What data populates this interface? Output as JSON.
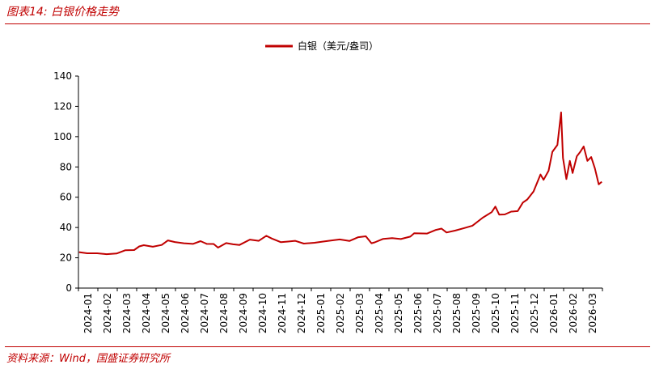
{
  "header": {
    "title": "图表14:  白银价格走势"
  },
  "footer": {
    "source": "资料来源：Wind，国盛证券研究所"
  },
  "colors": {
    "accent": "#c00000",
    "series": "#c00000"
  },
  "chart_data": {
    "type": "line",
    "title": "",
    "xlabel": "",
    "ylabel": "",
    "ylim": [
      0,
      140
    ],
    "yticks": [
      0,
      20,
      40,
      60,
      80,
      100,
      120,
      140
    ],
    "x_tick_labels": [
      "2024-01",
      "2024-02",
      "2024-03",
      "2024-04",
      "2024-05",
      "2024-06",
      "2024-07",
      "2024-08",
      "2024-09",
      "2024-10",
      "2024-11",
      "2024-12",
      "2025-01",
      "2025-02",
      "2025-03",
      "2025-04",
      "2025-05",
      "2025-06",
      "2025-07",
      "2025-08",
      "2025-09",
      "2025-10",
      "2025-11",
      "2025-12",
      "2026-01",
      "2026-02",
      "2026-03"
    ],
    "x_range": [
      "2024-01",
      "2026-04"
    ],
    "legend_position": "top-center",
    "grid": false,
    "series": [
      {
        "name": "白银（美元/盎司）",
        "points": [
          [
            "2024-01-02",
            23.7
          ],
          [
            "2024-01-15",
            23.0
          ],
          [
            "2024-01-31",
            23.0
          ],
          [
            "2024-02-14",
            22.4
          ],
          [
            "2024-02-29",
            22.8
          ],
          [
            "2024-03-14",
            25.0
          ],
          [
            "2024-03-28",
            25.1
          ],
          [
            "2024-04-05",
            27.5
          ],
          [
            "2024-04-12",
            28.3
          ],
          [
            "2024-04-26",
            27.3
          ],
          [
            "2024-05-10",
            28.5
          ],
          [
            "2024-05-20",
            31.5
          ],
          [
            "2024-05-31",
            30.4
          ],
          [
            "2024-06-14",
            29.6
          ],
          [
            "2024-06-28",
            29.2
          ],
          [
            "2024-07-10",
            31.0
          ],
          [
            "2024-07-20",
            29.2
          ],
          [
            "2024-07-31",
            29.1
          ],
          [
            "2024-08-07",
            26.7
          ],
          [
            "2024-08-20",
            29.7
          ],
          [
            "2024-08-31",
            28.9
          ],
          [
            "2024-09-10",
            28.5
          ],
          [
            "2024-09-26",
            32.0
          ],
          [
            "2024-10-10",
            31.2
          ],
          [
            "2024-10-22",
            34.5
          ],
          [
            "2024-10-31",
            32.7
          ],
          [
            "2024-11-14",
            30.3
          ],
          [
            "2024-11-25",
            30.7
          ],
          [
            "2024-12-06",
            31.2
          ],
          [
            "2024-12-20",
            29.4
          ],
          [
            "2025-01-06",
            29.9
          ],
          [
            "2025-01-20",
            30.7
          ],
          [
            "2025-01-31",
            31.3
          ],
          [
            "2025-02-14",
            32.1
          ],
          [
            "2025-02-28",
            31.1
          ],
          [
            "2025-03-14",
            33.6
          ],
          [
            "2025-03-26",
            34.2
          ],
          [
            "2025-04-04",
            29.6
          ],
          [
            "2025-04-09",
            30.2
          ],
          [
            "2025-04-22",
            32.5
          ],
          [
            "2025-05-06",
            33.0
          ],
          [
            "2025-05-20",
            32.4
          ],
          [
            "2025-06-04",
            34.0
          ],
          [
            "2025-06-10",
            36.2
          ],
          [
            "2025-06-30",
            36.0
          ],
          [
            "2025-07-14",
            38.4
          ],
          [
            "2025-07-23",
            39.3
          ],
          [
            "2025-07-31",
            36.7
          ],
          [
            "2025-08-14",
            38.0
          ],
          [
            "2025-08-29",
            39.7
          ],
          [
            "2025-09-10",
            41.2
          ],
          [
            "2025-09-26",
            46.5
          ],
          [
            "2025-10-10",
            50.1
          ],
          [
            "2025-10-16",
            53.8
          ],
          [
            "2025-10-22",
            48.5
          ],
          [
            "2025-10-31",
            48.6
          ],
          [
            "2025-11-10",
            50.5
          ],
          [
            "2025-11-20",
            50.8
          ],
          [
            "2025-11-28",
            56.5
          ],
          [
            "2025-12-05",
            58.5
          ],
          [
            "2025-12-15",
            63.8
          ],
          [
            "2025-12-26",
            75.0
          ],
          [
            "2025-12-31",
            71.5
          ],
          [
            "2026-01-08",
            77.5
          ],
          [
            "2026-01-14",
            90.0
          ],
          [
            "2026-01-22",
            94.5
          ],
          [
            "2026-01-28",
            116.0
          ],
          [
            "2026-01-31",
            86.0
          ],
          [
            "2026-02-05",
            72.0
          ],
          [
            "2026-02-10",
            84.0
          ],
          [
            "2026-02-14",
            76.0
          ],
          [
            "2026-02-20",
            87.0
          ],
          [
            "2026-02-25",
            90.0
          ],
          [
            "2026-03-02",
            93.5
          ],
          [
            "2026-03-08",
            84.0
          ],
          [
            "2026-03-14",
            86.5
          ],
          [
            "2026-03-20",
            79.0
          ],
          [
            "2026-03-26",
            68.5
          ],
          [
            "2026-03-31",
            70.2
          ]
        ]
      }
    ]
  }
}
